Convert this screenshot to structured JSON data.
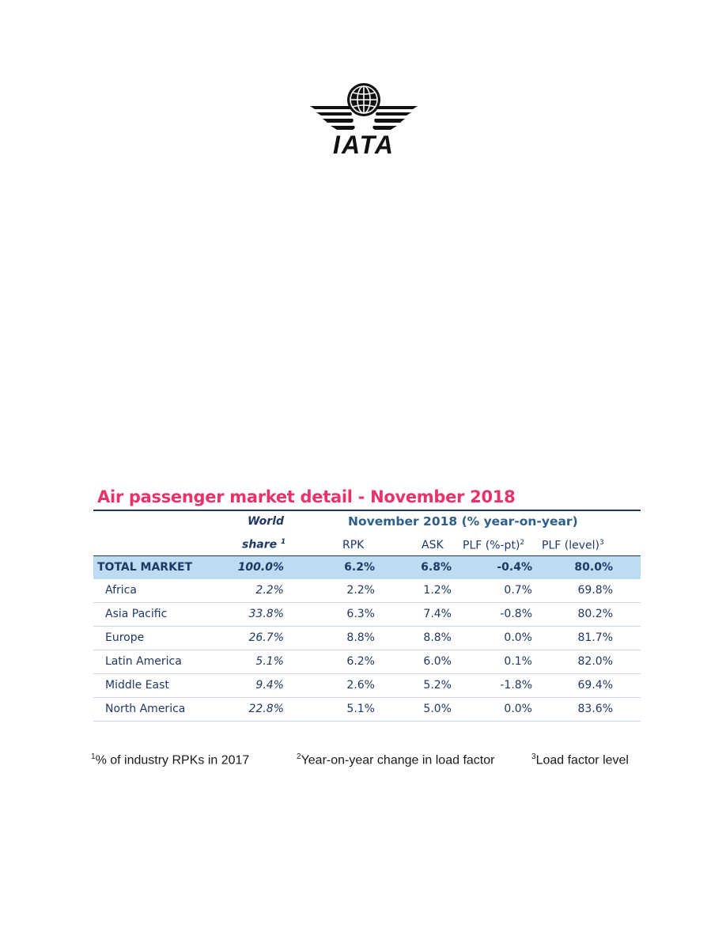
{
  "logo": {
    "text": "IATA"
  },
  "table": {
    "title": "Air passenger market detail - November 2018",
    "header": {
      "world": "World",
      "share": "share",
      "share_sup": "1",
      "period": "November 2018 (% year-on-year)",
      "rpk": "RPK",
      "ask": "ASK",
      "plf_pt": "PLF (%-pt)",
      "plf_pt_sup": "2",
      "plf_level": "PLF (level)",
      "plf_level_sup": "3"
    },
    "rows": [
      {
        "region": "TOTAL MARKET",
        "share": "100.0%",
        "rpk": "6.2%",
        "ask": "6.8%",
        "plf_pt": "-0.4%",
        "plf_level": "80.0%"
      },
      {
        "region": "Africa",
        "share": "2.2%",
        "rpk": "2.2%",
        "ask": "1.2%",
        "plf_pt": "0.7%",
        "plf_level": "69.8%"
      },
      {
        "region": "Asia Pacific",
        "share": "33.8%",
        "rpk": "6.3%",
        "ask": "7.4%",
        "plf_pt": "-0.8%",
        "plf_level": "80.2%"
      },
      {
        "region": "Europe",
        "share": "26.7%",
        "rpk": "8.8%",
        "ask": "8.8%",
        "plf_pt": "0.0%",
        "plf_level": "81.7%"
      },
      {
        "region": "Latin America",
        "share": "5.1%",
        "rpk": "6.2%",
        "ask": "6.0%",
        "plf_pt": "0.1%",
        "plf_level": "82.0%"
      },
      {
        "region": "Middle East",
        "share": "9.4%",
        "rpk": "2.6%",
        "ask": "5.2%",
        "plf_pt": "-1.8%",
        "plf_level": "69.4%"
      },
      {
        "region": "North America",
        "share": "22.8%",
        "rpk": "5.1%",
        "ask": "5.0%",
        "plf_pt": "0.0%",
        "plf_level": "83.6%"
      }
    ]
  },
  "footnotes": [
    {
      "sup": "1",
      "text": "% of industry RPKs in 2017"
    },
    {
      "sup": "2",
      "text": "Year-on-year change in load factor"
    },
    {
      "sup": "3",
      "text": "Load factor level"
    }
  ],
  "colors": {
    "title": "#e8336a",
    "header_text": "#1f3864",
    "total_row_bg": "#bcdcf2"
  }
}
